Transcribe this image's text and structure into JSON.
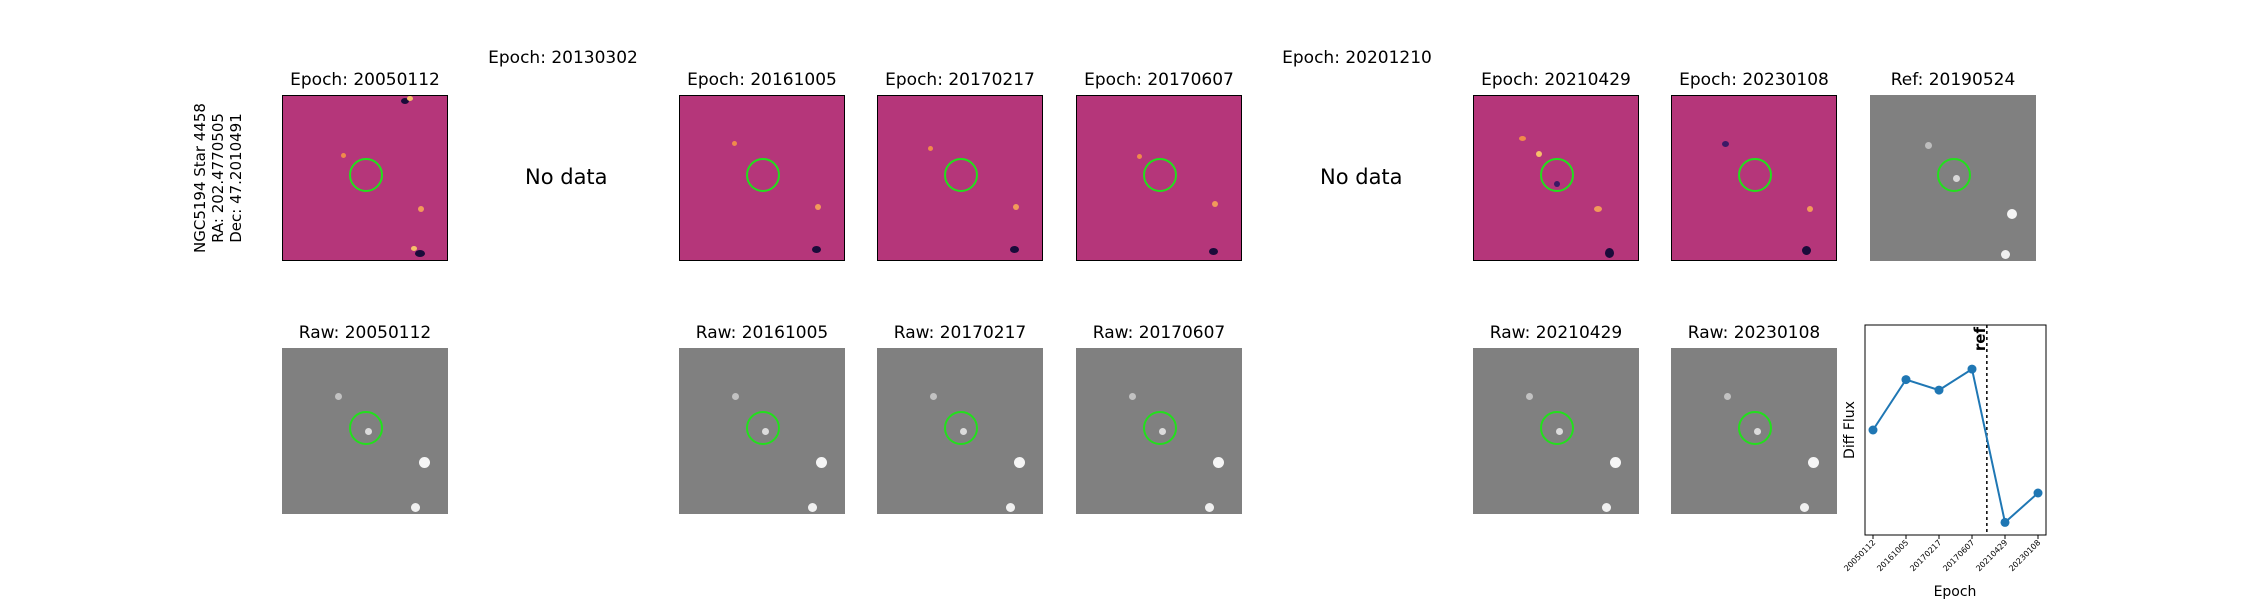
{
  "star": {
    "name": "NGC5194 Star 4458",
    "ra": "RA: 202.4770505",
    "dec": "Dec: 47.2010491"
  },
  "top_titles": {
    "e1": "Epoch: 20050112",
    "e2": "Epoch: 20130302",
    "e3": "Epoch: 20161005",
    "e4": "Epoch: 20170217",
    "e5": "Epoch: 20170607",
    "e6": "Epoch: 20201210",
    "e7": "Epoch: 20210429",
    "e8": "Epoch: 20230108",
    "ref": "Ref: 20190524"
  },
  "bottom_titles": {
    "r1": "Raw: 20050112",
    "r3": "Raw: 20161005",
    "r4": "Raw: 20170217",
    "r5": "Raw: 20170607",
    "r7": "Raw: 20210429",
    "r8": "Raw: 20230108"
  },
  "no_data": "No data",
  "colors": {
    "diff_background": "#b5367a",
    "raw_background": "#808080",
    "aperture": "#22e01c",
    "line": "#1f77b4"
  },
  "chart_data": {
    "type": "line",
    "title": "",
    "xlabel": "Epoch",
    "ylabel": "Diff Flux",
    "categories": [
      "20050112",
      "20161005",
      "20170217",
      "20170607",
      "20210429",
      "20230108"
    ],
    "values": [
      0.5,
      0.74,
      0.69,
      0.79,
      0.06,
      0.2
    ],
    "ylim": [
      0,
      1
    ],
    "reference_line": {
      "label": "ref",
      "position_between": [
        "20170607",
        "20210429"
      ],
      "fraction": 0.45
    },
    "grid": false
  }
}
